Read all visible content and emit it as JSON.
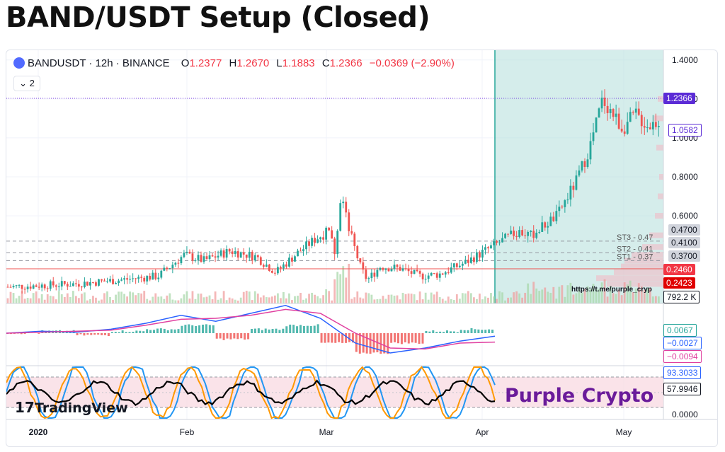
{
  "page_title": "BAND/USDT Setup (Closed)",
  "header": {
    "symbol": "BANDUSDT · 12h · BINANCE",
    "open_label": "O",
    "open": "1.2377",
    "high_label": "H",
    "high": "1.2670",
    "low_label": "L",
    "low": "1.1883",
    "close_label": "C",
    "close": "1.2366",
    "change": "−0.0369 (−2.90%)",
    "indicator_count": "2"
  },
  "watermark": {
    "tv": "TradingView",
    "brand": "Purple Crypto",
    "url": "https://t.me/purple_cryp"
  },
  "colors": {
    "up": "#26a69a",
    "down": "#ef5350",
    "brand": "#6a1b9a",
    "zone": "#b2dfdb"
  },
  "chart_data": [
    {
      "type": "line",
      "title": "",
      "x": [
        "2020",
        "Feb",
        "Mar",
        "Apr",
        "May"
      ],
      "ylim": [
        0.15,
        1.45
      ],
      "yticks": [
        "1.4000",
        "1.2000",
        "1.0000",
        "0.8000",
        "0.6000"
      ],
      "price_path": [
        [
          0,
          0.235
        ],
        [
          10,
          0.25
        ],
        [
          17,
          0.27
        ],
        [
          23,
          0.29
        ],
        [
          27,
          0.4
        ],
        [
          30,
          0.37
        ],
        [
          34,
          0.42
        ],
        [
          38,
          0.39
        ],
        [
          41,
          0.31
        ],
        [
          44,
          0.4
        ],
        [
          47,
          0.48
        ],
        [
          49,
          0.52
        ],
        [
          50,
          0.42
        ],
        [
          51,
          0.72
        ],
        [
          52,
          0.55
        ],
        [
          54,
          0.33
        ],
        [
          55,
          0.27
        ],
        [
          57,
          0.34
        ],
        [
          60,
          0.33
        ],
        [
          63,
          0.29
        ],
        [
          66,
          0.3
        ],
        [
          70,
          0.36
        ],
        [
          74,
          0.44
        ],
        [
          78,
          0.52
        ],
        [
          80,
          0.5
        ],
        [
          84,
          0.6
        ],
        [
          87,
          0.78
        ],
        [
          89,
          0.95
        ],
        [
          91,
          1.2
        ],
        [
          92,
          1.15
        ],
        [
          94,
          1.05
        ],
        [
          96,
          1.12
        ],
        [
          98,
          1.06
        ],
        [
          100,
          1.1
        ]
      ],
      "level_lines": [
        {
          "name": "ST3",
          "label": "ST3 - 0.47",
          "value": 0.47,
          "badge": "0.4700"
        },
        {
          "name": "ST2",
          "label": "ST2 - 0.41",
          "value": 0.41,
          "badge": "0.4100"
        },
        {
          "name": "ST1",
          "label": "ST1 - 0.37",
          "value": 0.37,
          "badge": "0.3700"
        }
      ],
      "price_badges": [
        "1.2366",
        "1.0582",
        "0.2460",
        "0.2423",
        "792.2 K"
      ]
    },
    {
      "type": "line",
      "series": [
        {
          "values": [
            0,
            0.002,
            0.001,
            0.004,
            0.01,
            0.018,
            0.012,
            0.02,
            0.028,
            0.015,
            -0.01,
            -0.02,
            -0.015,
            -0.008,
            -0.003
          ]
        },
        {
          "values": [
            0,
            0.001,
            0.002,
            0.003,
            0.008,
            0.014,
            0.015,
            0.018,
            0.024,
            0.02,
            0.0,
            -0.015,
            -0.016,
            -0.01,
            -0.009
          ]
        }
      ],
      "badges": [
        "0.0067",
        "−0.0027",
        "−0.0094"
      ]
    },
    {
      "type": "line",
      "yticks": [
        "0.0000"
      ],
      "badges": [
        "93.3033",
        "57.9946"
      ]
    }
  ]
}
